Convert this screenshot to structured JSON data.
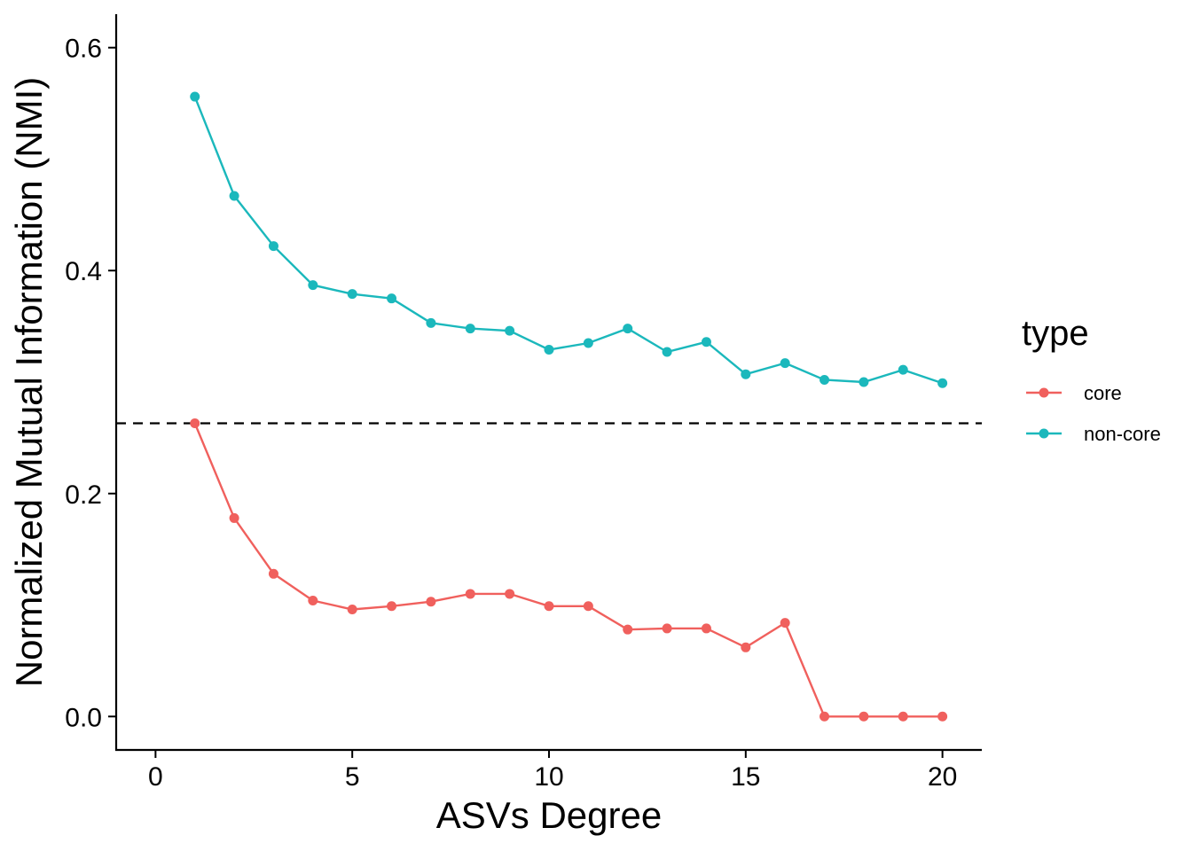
{
  "chart_data": {
    "type": "line",
    "xlabel": "ASVs Degree",
    "ylabel": "Normalized Mutual Information (NMI)",
    "xlim": [
      -1,
      21
    ],
    "ylim": [
      -0.03,
      0.63
    ],
    "xticks": [
      0,
      5,
      10,
      15,
      20
    ],
    "yticks": [
      0.0,
      0.2,
      0.4,
      0.6
    ],
    "xtick_labels": [
      "0",
      "5",
      "10",
      "15",
      "20"
    ],
    "ytick_labels": [
      "0.0",
      "0.2",
      "0.4",
      "0.6"
    ],
    "grid": false,
    "reference_line": {
      "orientation": "horizontal",
      "y": 0.263,
      "style": "dashed",
      "color": "#000000"
    },
    "legend": {
      "title": "type",
      "placement": "right"
    },
    "x": [
      1,
      2,
      3,
      4,
      5,
      6,
      7,
      8,
      9,
      10,
      11,
      12,
      13,
      14,
      15,
      16,
      17,
      18,
      19,
      20
    ],
    "series": [
      {
        "name": "core",
        "color": "#F0605D",
        "values": [
          0.263,
          0.178,
          0.128,
          0.104,
          0.096,
          0.099,
          0.103,
          0.11,
          0.11,
          0.099,
          0.099,
          0.078,
          0.079,
          0.079,
          0.062,
          0.084,
          0.0,
          0.0,
          0.0,
          0.0
        ]
      },
      {
        "name": "non-core",
        "color": "#1BB8BC",
        "values": [
          0.556,
          0.467,
          0.422,
          0.387,
          0.379,
          0.375,
          0.353,
          0.348,
          0.346,
          0.329,
          0.335,
          0.348,
          0.327,
          0.336,
          0.307,
          0.317,
          0.302,
          0.3,
          0.311,
          0.299
        ]
      }
    ]
  }
}
